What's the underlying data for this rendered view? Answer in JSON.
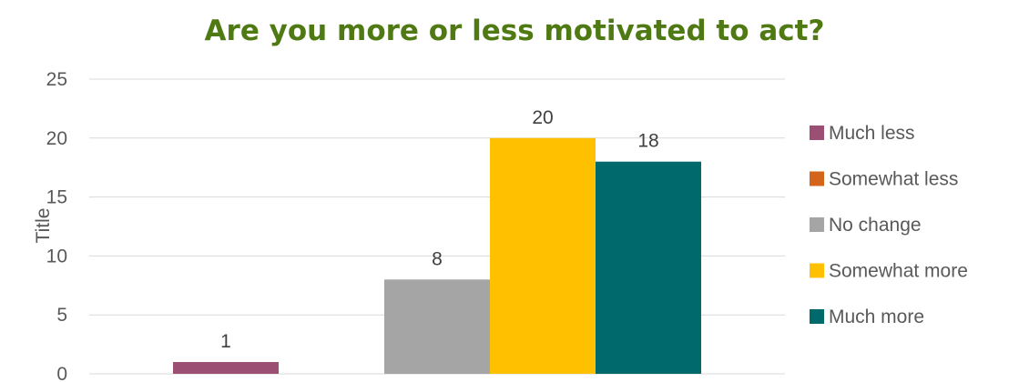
{
  "chart_data": {
    "type": "bar",
    "title": "Are you more or less motivated to act?",
    "ylabel": "Title",
    "xlabel": "",
    "ylim": [
      0,
      25
    ],
    "yticks": [
      0,
      5,
      10,
      15,
      20,
      25
    ],
    "grid": true,
    "legend_position": "right",
    "title_color": "#4f7a13",
    "series": [
      {
        "name": "Much less",
        "value": 1,
        "color": "#9b4f73"
      },
      {
        "name": "Somewhat less",
        "value": 0,
        "color": "#d4641a"
      },
      {
        "name": "No change",
        "value": 8,
        "color": "#a5a5a5"
      },
      {
        "name": "Somewhat more",
        "value": 20,
        "color": "#ffc000"
      },
      {
        "name": "Much more",
        "value": 18,
        "color": "#00696b"
      }
    ]
  }
}
